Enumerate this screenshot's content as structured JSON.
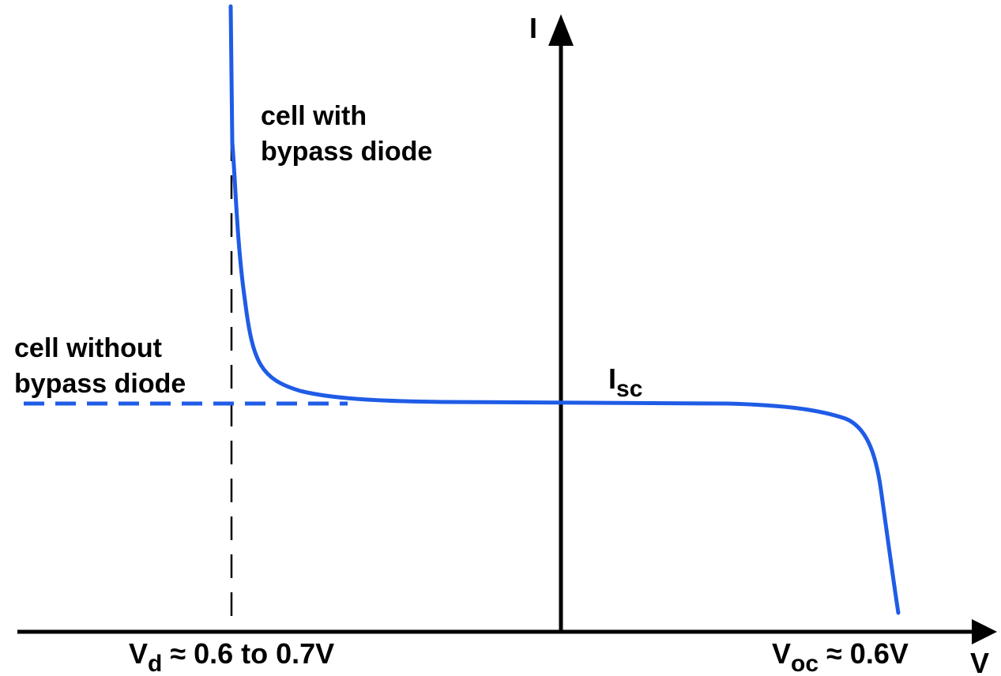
{
  "axes": {
    "y_label": "I",
    "x_label": "V"
  },
  "labels": {
    "with_diode_line1": "cell with",
    "with_diode_line2": "bypass diode",
    "without_diode_line1": "cell without",
    "without_diode_line2": "bypass diode",
    "isc_main": "I",
    "isc_sub": "sc",
    "vd_main": "V",
    "vd_sub": "d",
    "vd_rest": " ≈ 0.6 to 0.7V",
    "voc_main": "V",
    "voc_sub": "oc",
    "voc_rest": " ≈ 0.6V"
  },
  "colors": {
    "curve": "#1f5ce6",
    "axis": "#000000",
    "background": "#ffffff"
  }
}
